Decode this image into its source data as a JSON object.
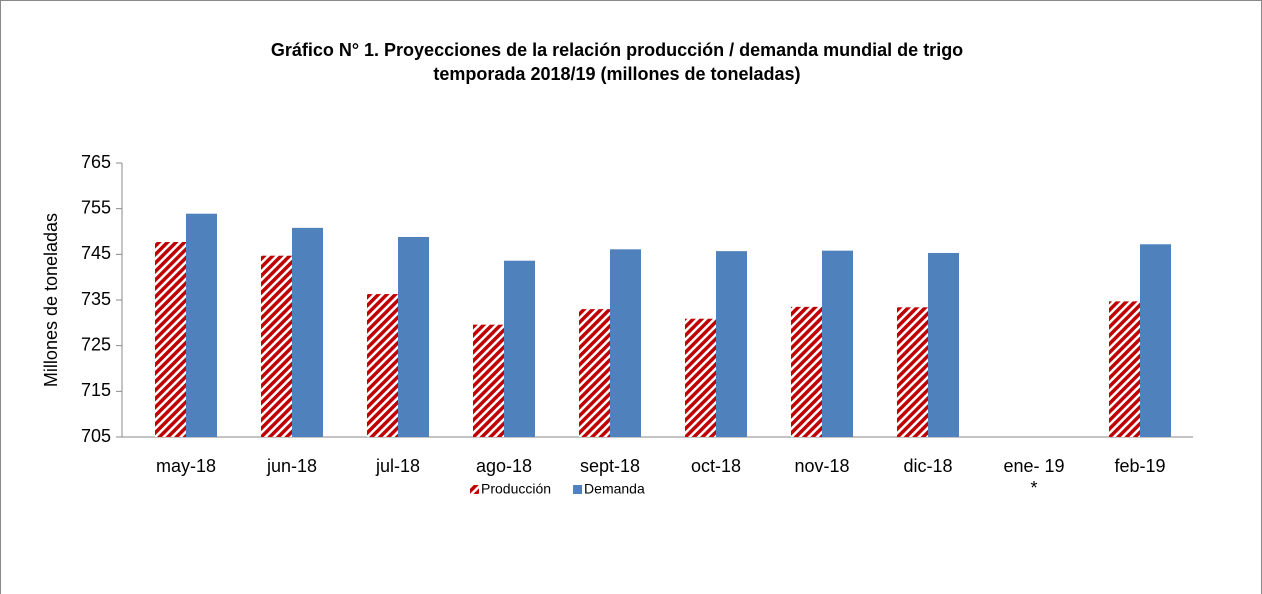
{
  "chart_data": {
    "type": "bar",
    "title": "Gráfico N° 1. Proyecciones de la relación producción / demanda mundial de trigo temporada 2018/19 (millones de toneladas)",
    "y_label": "Millones de toneladas",
    "categories": [
      "may-18",
      "jun-18",
      "jul-18",
      "ago-18",
      "sept-18",
      "oct-18",
      "nov-18",
      "dic-18",
      "ene- 19 *",
      "feb-19"
    ],
    "series": [
      {
        "name": "Producción",
        "color": "#c00000",
        "pattern": "hatch",
        "values": [
          747.7,
          744.7,
          736.3,
          729.6,
          733.0,
          730.9,
          733.5,
          733.4,
          null,
          734.7
        ]
      },
      {
        "name": "Demanda",
        "color": "#4f81bd",
        "values": [
          753.9,
          750.8,
          748.8,
          743.6,
          746.1,
          745.7,
          745.8,
          745.3,
          null,
          747.2
        ]
      }
    ],
    "ylim": [
      705,
      765
    ],
    "yticks": [
      705,
      715,
      725,
      735,
      745,
      755,
      765
    ],
    "grid": false,
    "legend": "bottom"
  }
}
